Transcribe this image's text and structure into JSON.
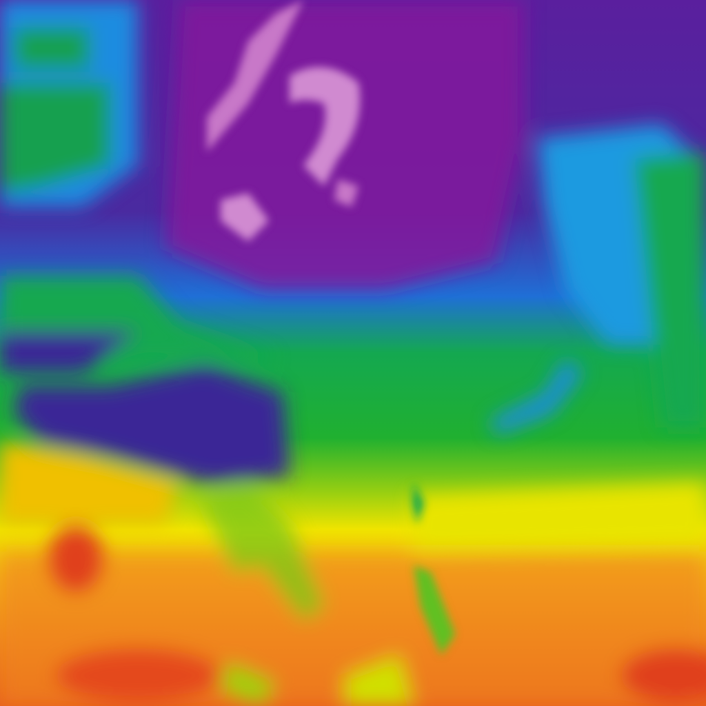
{
  "map": {
    "palette": {
      "pink": "#c878c8",
      "purple": "#82199c",
      "indigo": "#3a2896",
      "blue": "#1a8ce0",
      "green": "#14a850",
      "lime": "#9cd010",
      "yellow": "#f0e400",
      "orange": "#f08a1c",
      "red": "#e0401c"
    }
  }
}
